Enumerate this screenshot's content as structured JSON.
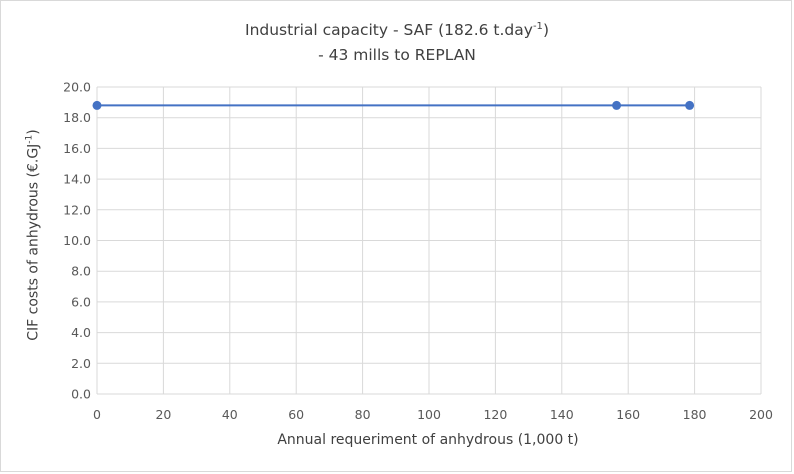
{
  "chart_data": {
    "type": "line",
    "title_line1": "Industrial capacity - SAF (182.6 t.day",
    "title_sup": "-1",
    "title_line1_end": ")",
    "title_line2": "- 43 mills to REPLAN",
    "xlabel": "Annual requeriment of anhydrous (1,000 t)",
    "ylabel_main": "CIF costs of anhydrous (€.GJ",
    "ylabel_sup": "-1",
    "ylabel_end": ")",
    "xlim": [
      0,
      200
    ],
    "ylim": [
      0,
      20
    ],
    "x_ticks": [
      "0",
      "20",
      "40",
      "60",
      "80",
      "100",
      "120",
      "140",
      "160",
      "180",
      "200"
    ],
    "y_ticks": [
      "0.0",
      "2.0",
      "4.0",
      "6.0",
      "8.0",
      "10.0",
      "12.0",
      "14.0",
      "16.0",
      "18.0",
      "20.0"
    ],
    "grid": true,
    "legend": "none",
    "series": [
      {
        "color": "#4472c4",
        "x": [
          0,
          156.5,
          178.5
        ],
        "y": [
          18.8,
          18.8,
          18.8
        ]
      }
    ]
  }
}
